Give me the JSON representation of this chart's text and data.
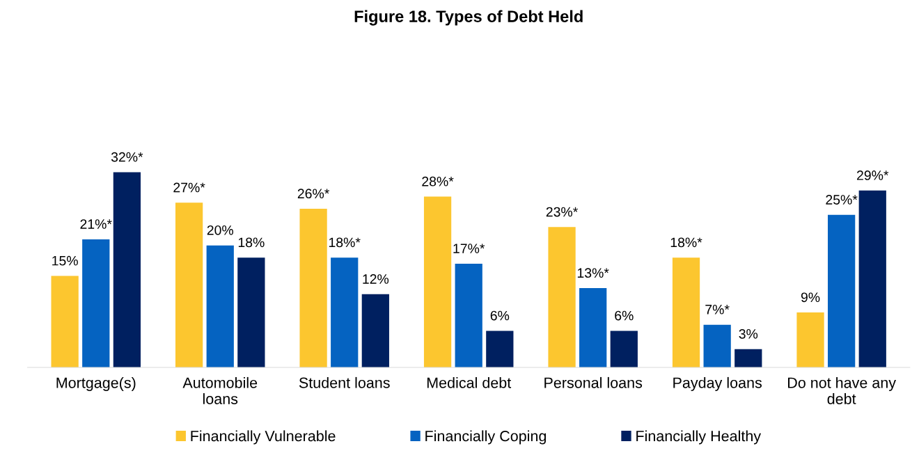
{
  "chart_data": {
    "type": "bar",
    "title": "Figure 18. Types of Debt Held",
    "categories": [
      "Mortgage(s)",
      "Automobile\nloans",
      "Student loans",
      "Medical debt",
      "Personal loans",
      "Payday loans",
      "Do not have any\ndebt"
    ],
    "series": [
      {
        "name": "Financially Vulnerable",
        "color": "#fcc62f",
        "values": [
          15,
          27,
          26,
          28,
          23,
          18,
          9
        ],
        "value_labels": [
          "15%",
          "27%*",
          "26%*",
          "28%*",
          "23%*",
          "18%*",
          "9%"
        ]
      },
      {
        "name": "Financially Coping",
        "color": "#0563c1",
        "values": [
          21,
          20,
          18,
          17,
          13,
          7,
          25
        ],
        "value_labels": [
          "21%*",
          "20%",
          "18%*",
          "17%*",
          "13%*",
          "7%*",
          "25%*"
        ]
      },
      {
        "name": "Financially Healthy",
        "color": "#002060",
        "values": [
          32,
          18,
          12,
          6,
          6,
          3,
          29
        ],
        "value_labels": [
          "32%*",
          "18%",
          "12%",
          "6%",
          "6%",
          "3%",
          "29%*"
        ]
      }
    ],
    "grid": false,
    "legend": "bottom"
  }
}
